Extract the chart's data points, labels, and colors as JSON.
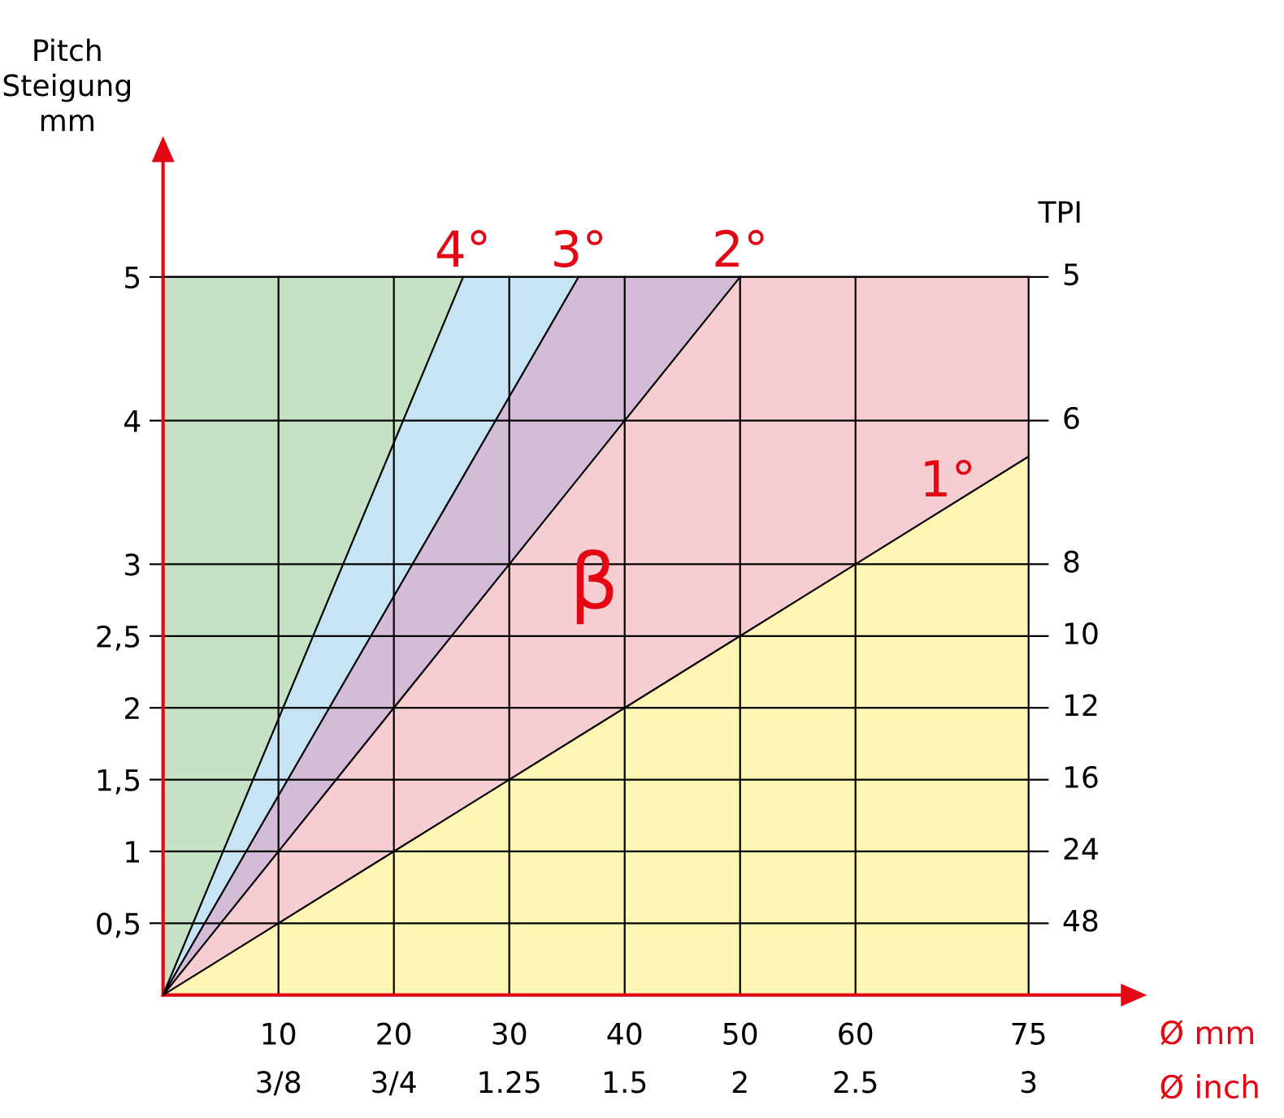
{
  "chart_data": {
    "type": "area",
    "stacked": true,
    "xlabel": "Ø mm",
    "ylabel": "Pitch\nSteigung\nmm",
    "xlim": [
      0,
      83
    ],
    "ylim": [
      0,
      5.8
    ],
    "xticks": [
      10,
      20,
      30,
      40,
      50,
      60,
      75
    ],
    "yticks": [
      {
        "value": 0.5,
        "label": "0,5"
      },
      1,
      {
        "value": 1.5,
        "label": "1,5"
      },
      2,
      {
        "value": 2.5,
        "label": "2,5"
      },
      3,
      4,
      5
    ],
    "grid": true,
    "x": [
      0,
      26,
      36,
      50,
      75
    ],
    "series": [
      {
        "color": "#fdf6b4",
        "values": [
          0,
          1.3,
          1.8,
          2.5,
          3.75
        ]
      },
      {
        "color": "#f6cdd0",
        "values": [
          0,
          1.3,
          1.8,
          2.5,
          1.25
        ]
      },
      {
        "color": "#d4bcd9",
        "values": [
          0,
          1.01,
          1.4,
          0,
          null
        ]
      },
      {
        "color": "#c6e4f4",
        "values": [
          0,
          1.39,
          0,
          null,
          null
        ]
      },
      {
        "color": "#c5e3c4",
        "values": [
          5,
          0,
          null,
          null,
          null
        ]
      }
    ],
    "annotations": [
      "4°",
      "3°",
      {
        "text": "2°",
        "x": 50,
        "y": 5
      },
      {
        "text": "1°",
        "x": 68,
        "y": 3.4
      },
      "β",
      "TPI",
      "Ø inch",
      "48",
      "24",
      "16",
      "12",
      "10",
      "8",
      "6",
      "5",
      "3/8",
      "3/4",
      "1.25",
      "1.5",
      "2",
      "2.5",
      "3"
    ]
  }
}
